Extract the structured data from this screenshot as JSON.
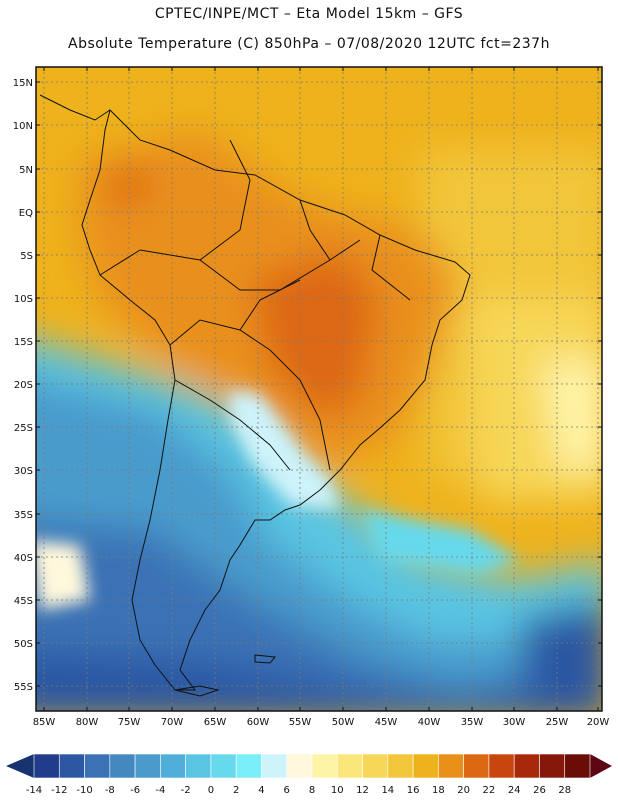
{
  "header": {
    "line1": "CPTEC/INPE/MCT –  Eta Model 15km – GFS",
    "line2": "Absolute Temperature (C) 850hPa – 07/08/2020 12UTC fct=237h"
  },
  "map": {
    "lat_labels": [
      "15N",
      "10N",
      "5N",
      "EQ",
      "5S",
      "10S",
      "15S",
      "20S",
      "25S",
      "30S",
      "35S",
      "40S",
      "45S",
      "50S",
      "55S"
    ],
    "lon_labels": [
      "85W",
      "80W",
      "75W",
      "70W",
      "65W",
      "60W",
      "55W",
      "50W",
      "45W",
      "40W",
      "35W",
      "30W",
      "25W",
      "20W"
    ]
  },
  "colorbar": {
    "labels": [
      "-14",
      "-12",
      "-10",
      "-8",
      "-6",
      "-4",
      "-2",
      "0",
      "2",
      "4",
      "6",
      "8",
      "10",
      "12",
      "14",
      "16",
      "18",
      "20",
      "22",
      "24",
      "26",
      "28"
    ],
    "colors": [
      "#223c8c",
      "#2c57a3",
      "#3a72b5",
      "#4488c0",
      "#4a9bcc",
      "#50afd8",
      "#5ac5e2",
      "#66d9ec",
      "#78eef8",
      "#cdf3fb",
      "#fff8dc",
      "#fef4a8",
      "#fbe67a",
      "#f7d758",
      "#f2c63a",
      "#eeb21c",
      "#e9901a",
      "#dd6812",
      "#c9450e",
      "#a8280c",
      "#851808",
      "#6b0d06"
    ],
    "left_arrow_color": "#173470",
    "right_arrow_color": "#5b0612"
  }
}
